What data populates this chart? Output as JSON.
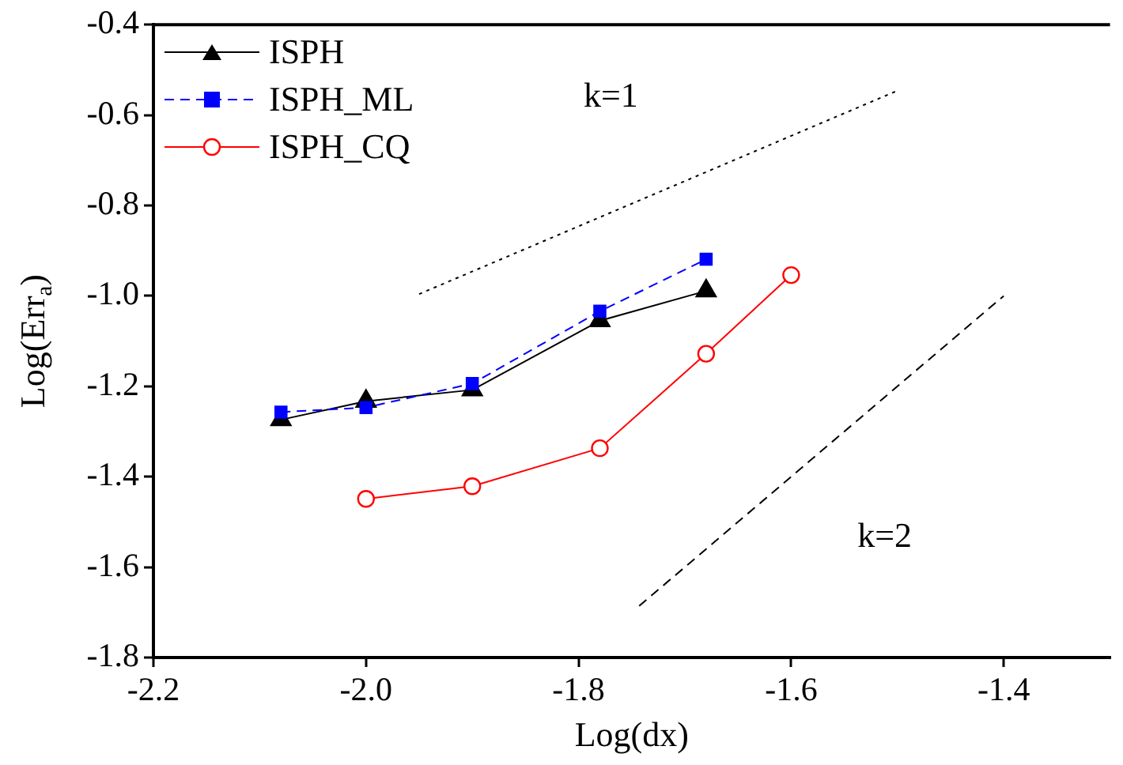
{
  "chart_data": {
    "type": "line",
    "xlabel": "Log(dx)",
    "ylabel": "Log(Err$_{a}$)",
    "xlim": [
      -2.2,
      -1.3
    ],
    "xticks": [
      -2.2,
      {
        "value": -2,
        "label": "-2.0"
      },
      -1.8,
      -1.6,
      -1.4
    ],
    "ylim": [
      -1.8,
      -0.4
    ],
    "yticks": [
      -1.8,
      -1.6,
      -1.4,
      -1.2,
      {
        "value": -1,
        "label": "-1.0"
      },
      -0.8,
      -0.6,
      -0.4
    ],
    "grid": false,
    "legend": "top left",
    "annotations": [
      "k=1",
      "k=2"
    ],
    "series": [
      {
        "name": "ISPH",
        "color": "#000000",
        "marker": "triangle",
        "line_style": "solid",
        "x": [
          -2.08,
          -2.0,
          -1.9,
          -1.78,
          -1.68
        ],
        "values": [
          -1.274,
          -1.233,
          -1.208,
          -1.055,
          -0.989
        ]
      },
      {
        "name": "ISPH_ML",
        "color": "#0000ff",
        "marker": "square",
        "line_style": "dashed",
        "x": [
          -2.08,
          -2.0,
          -1.9,
          -1.78,
          -1.68
        ],
        "values": [
          -1.257,
          -1.247,
          -1.194,
          -1.034,
          -0.919
        ]
      },
      {
        "name": "ISPH_CQ",
        "color": "#ff0000",
        "marker": "circle",
        "line_style": "solid",
        "x": [
          -2.0,
          -1.9,
          -1.78,
          -1.68,
          -1.6
        ],
        "values": [
          -1.449,
          -1.421,
          -1.337,
          -1.128,
          -0.954
        ]
      },
      {
        "type": "line",
        "color": "#000000",
        "marker": "none",
        "line_style": "dotted",
        "x": [
          -1.95,
          -1.5
        ],
        "values": [
          -0.996,
          -0.546
        ]
      },
      {
        "type": "line",
        "color": "#000000",
        "marker": "none",
        "line_style": "dashed",
        "x": [
          -1.743,
          -1.4
        ],
        "values": [
          -1.686,
          -1.0
        ]
      }
    ]
  }
}
